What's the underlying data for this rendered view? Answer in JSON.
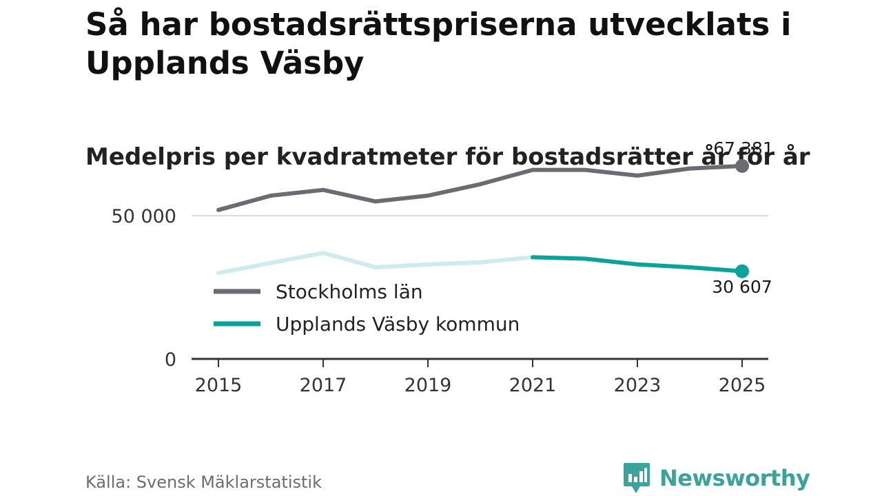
{
  "title": "Så har bostadsrättspriserna utvecklats i Upplands Väsby",
  "subtitle": "Medelpris per kvadratmeter för bostadsrätter år för år",
  "source": "Källa: Svensk Mäklarstatistik",
  "brand": "Newsworthy",
  "colors": {
    "stockholm": "#6b6b73",
    "vasby": "#0aa39a",
    "vasby_faded": "#cdeceb",
    "grid": "#d9d9d9",
    "axis": "#333333"
  },
  "chart_data": {
    "type": "line",
    "title": "Medelpris per kvadratmeter för bostadsrätter år för år",
    "x": [
      2015,
      2016,
      2017,
      2018,
      2019,
      2020,
      2021,
      2022,
      2023,
      2024,
      2025
    ],
    "xticks": [
      2015,
      2017,
      2019,
      2021,
      2023,
      2025
    ],
    "yticks": [
      0,
      50000
    ],
    "ytick_labels": [
      "0",
      "50 000"
    ],
    "ylim": [
      0,
      70000
    ],
    "xlim": [
      2015,
      2025
    ],
    "series": [
      {
        "name": "Stockholms län",
        "key": "stockholm",
        "values": [
          52000,
          57000,
          59000,
          55000,
          57000,
          61000,
          66000,
          66000,
          64000,
          66500,
          67381
        ],
        "end_label": "67 381"
      },
      {
        "name": "Upplands Väsby kommun",
        "key": "vasby",
        "values": [
          30000,
          33500,
          37000,
          32000,
          33000,
          33700,
          35500,
          35000,
          33000,
          32000,
          30607
        ],
        "highlight_from": 2021,
        "end_label": "30 607"
      }
    ],
    "legend": [
      "Stockholms län",
      "Upplands Väsby kommun"
    ],
    "legend_position": "inside-left",
    "grid": true
  }
}
